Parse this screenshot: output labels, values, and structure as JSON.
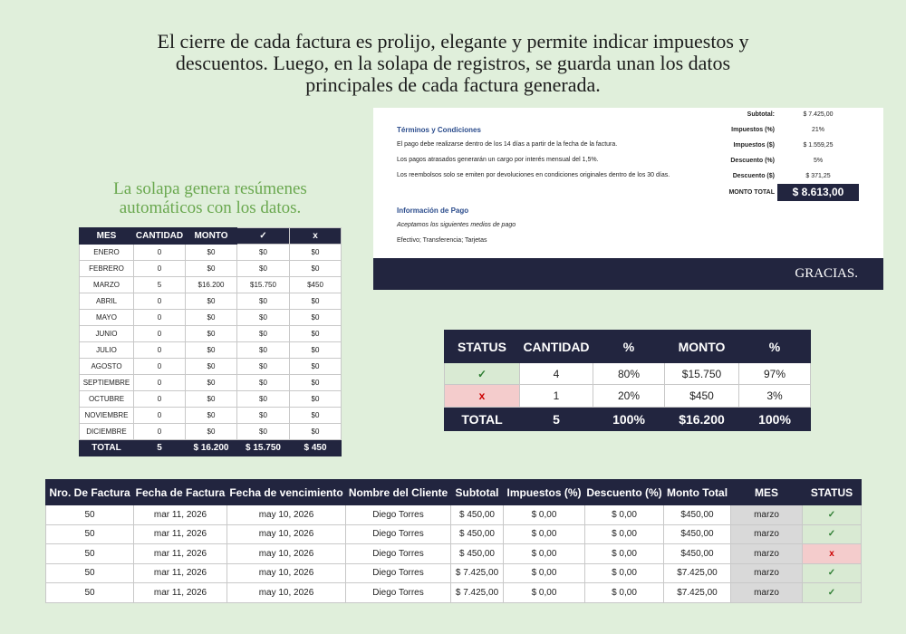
{
  "intro": {
    "lines": [
      "El cierre de cada factura es prolijo, elegante y permite indicar impuestos y",
      "descuentos. Luego, en la solapa de registros, se guarda unan los datos",
      "principales de cada factura generada."
    ]
  },
  "side_note": {
    "lines": [
      "La solapa genera resúmenes",
      "automáticos con los datos."
    ]
  },
  "invoice": {
    "summary": [
      [
        "Subtotal:",
        "$ 7.425,00"
      ],
      [
        "Impuestos (%)",
        "21%"
      ],
      [
        "Impuestos ($)",
        "$ 1.559,25"
      ],
      [
        "Descuento (%)",
        "5%"
      ],
      [
        "Descuento ($)",
        "$ 371,25"
      ]
    ],
    "total": [
      "MONTO TOTAL",
      "$ 8.613,00"
    ],
    "terms_title": "Términos y Condiciones",
    "terms": [
      "El pago debe realizarse dentro de los 14 días a partir de la fecha de la factura.",
      "Los pagos atrasados generarán un cargo por interés mensual del 1,5%.",
      "Los reembolsos solo se emiten por devoluciones en condiciones originales dentro de los 30 días."
    ],
    "payment_title": "Información de Pago",
    "payment_note": "Aceptamos los siguientes medios de pago",
    "payment_methods": "Efectivo; Transferencia; Tarjetas",
    "footer": "GRACIAS."
  },
  "months_table": {
    "headers": [
      "MES",
      "CANTIDAD",
      "MONTO",
      "✓",
      "x"
    ],
    "rows": [
      [
        "ENERO",
        0,
        "$0",
        "$0",
        "$0"
      ],
      [
        "FEBRERO",
        0,
        "$0",
        "$0",
        "$0"
      ],
      [
        "MARZO",
        5,
        "$16.200",
        "$15.750",
        "$450"
      ],
      [
        "ABRIL",
        0,
        "$0",
        "$0",
        "$0"
      ],
      [
        "MAYO",
        0,
        "$0",
        "$0",
        "$0"
      ],
      [
        "JUNIO",
        0,
        "$0",
        "$0",
        "$0"
      ],
      [
        "JULIO",
        0,
        "$0",
        "$0",
        "$0"
      ],
      [
        "AGOSTO",
        0,
        "$0",
        "$0",
        "$0"
      ],
      [
        "SEPTIEMBRE",
        0,
        "$0",
        "$0",
        "$0"
      ],
      [
        "OCTUBRE",
        0,
        "$0",
        "$0",
        "$0"
      ],
      [
        "NOVIEMBRE",
        0,
        "$0",
        "$0",
        "$0"
      ],
      [
        "DICIEMBRE",
        0,
        "$0",
        "$0",
        "$0"
      ]
    ],
    "total": [
      "TOTAL",
      5,
      "$ 16.200",
      "$ 15.750",
      "$ 450"
    ]
  },
  "status_table": {
    "headers": [
      "STATUS",
      "CANTIDAD",
      "%",
      "MONTO",
      "%"
    ],
    "rows": [
      [
        "✓",
        4,
        "80%",
        "$15.750",
        "97%"
      ],
      [
        "x",
        1,
        "20%",
        "$450",
        "3%"
      ]
    ],
    "total": [
      "TOTAL",
      5,
      "100%",
      "$16.200",
      "100%"
    ]
  },
  "records_table": {
    "headers": [
      "Nro. De Factura",
      "Fecha de Factura",
      "Fecha de vencimiento",
      "Nombre del Cliente",
      "Subtotal",
      "Impuestos (%)",
      "Descuento (%)",
      "Monto Total",
      "MES",
      "STATUS"
    ],
    "rows": [
      [
        50,
        "mar 11, 2026",
        "may 10, 2026",
        "Diego Torres",
        "$ 450,00",
        "$ 0,00",
        "$ 0,00",
        "$450,00",
        "marzo",
        "✓"
      ],
      [
        50,
        "mar 11, 2026",
        "may 10, 2026",
        "Diego Torres",
        "$ 450,00",
        "$ 0,00",
        "$ 0,00",
        "$450,00",
        "marzo",
        "✓"
      ],
      [
        50,
        "mar 11, 2026",
        "may 10, 2026",
        "Diego Torres",
        "$ 450,00",
        "$ 0,00",
        "$ 0,00",
        "$450,00",
        "marzo",
        "x"
      ],
      [
        50,
        "mar 11, 2026",
        "may 10, 2026",
        "Diego Torres",
        "$ 7.425,00",
        "$ 0,00",
        "$ 0,00",
        "$7.425,00",
        "marzo",
        "✓"
      ],
      [
        50,
        "mar 11, 2026",
        "may 10, 2026",
        "Diego Torres",
        "$ 7.425,00",
        "$ 0,00",
        "$ 0,00",
        "$7.425,00",
        "marzo",
        "✓"
      ]
    ]
  }
}
